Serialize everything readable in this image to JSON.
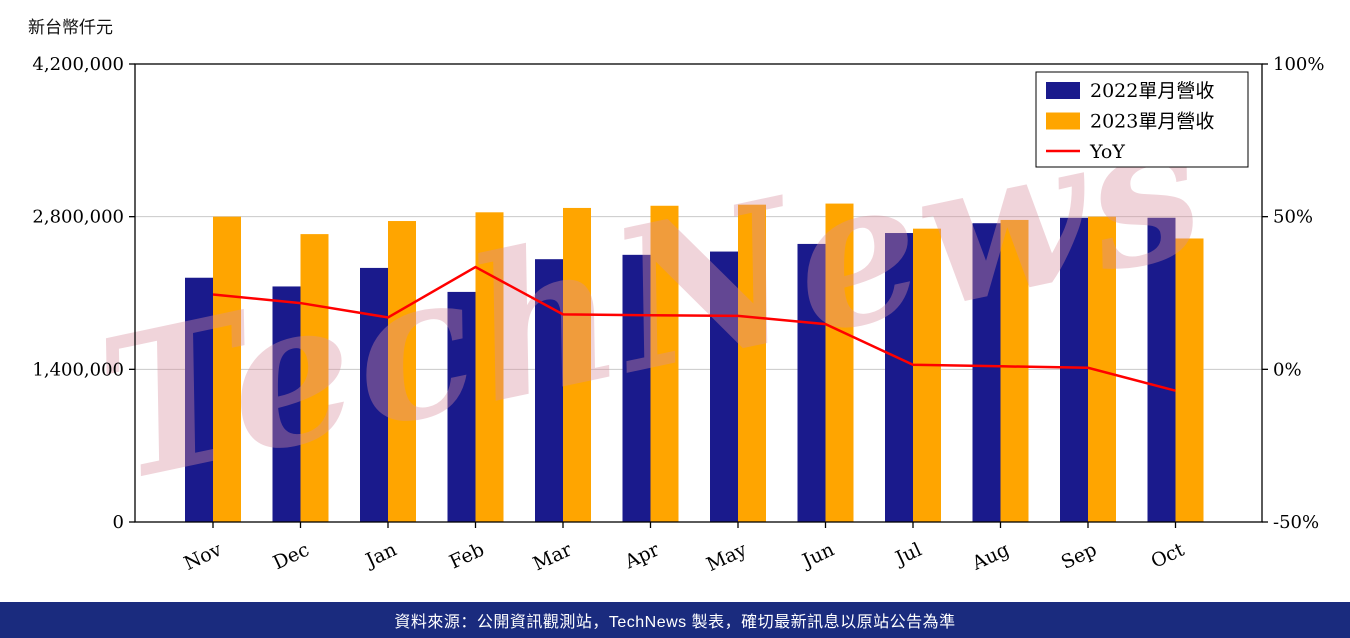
{
  "page": {
    "unit_label": "新台幣仟元",
    "watermark": "TechNews",
    "footer_text": "資料來源：公開資訊觀測站，TechNews 製表，確切最新訊息以原站公告為準"
  },
  "colors": {
    "bar_2022": "#1A1A8C",
    "bar_2023": "#FFA500",
    "yoy_line": "#FF0000",
    "footer_bg": "#1A2B7E",
    "watermark": "#D9909F",
    "grid": "#C9C9C9",
    "axis": "#000000"
  },
  "chart_data": {
    "type": "bar",
    "title": "",
    "xlabel": "",
    "ylabel": "新台幣仟元",
    "categories": [
      "Nov",
      "Dec",
      "Jan",
      "Feb",
      "Mar",
      "Apr",
      "May",
      "Jun",
      "Jul",
      "Aug",
      "Sep",
      "Oct"
    ],
    "series": [
      {
        "name": "2022單月營收",
        "type": "bar",
        "axis": "left",
        "color": "#1A1A8C",
        "values": [
          2240000,
          2160000,
          2330000,
          2110000,
          2410000,
          2450000,
          2480000,
          2550000,
          2650000,
          2740000,
          2790000,
          2790000
        ]
      },
      {
        "name": "2023單月營收",
        "type": "bar",
        "axis": "left",
        "color": "#FFA500",
        "values": [
          2800000,
          2640000,
          2760000,
          2840000,
          2880000,
          2900000,
          2910000,
          2920000,
          2690000,
          2770000,
          2800000,
          2600000
        ]
      },
      {
        "name": "YoY",
        "type": "line",
        "axis": "right",
        "color": "#FF0000",
        "values": [
          24.5,
          21.7,
          17.0,
          33.5,
          18.0,
          17.7,
          17.5,
          14.8,
          1.5,
          1.0,
          0.5,
          -7.0
        ]
      }
    ],
    "left_axis": {
      "min": 0,
      "max": 4200000,
      "tick_values": [
        0,
        1400000,
        2800000,
        4200000
      ],
      "tick_labels": [
        "0",
        "1,400,000",
        "2,800,000",
        "4,200,000"
      ]
    },
    "right_axis": {
      "min": -50,
      "max": 100,
      "tick_values": [
        -50,
        0,
        50,
        100
      ],
      "tick_labels": [
        "-50%",
        "0%",
        "50%",
        "100%"
      ]
    },
    "legend_position": "top-right",
    "grid": true
  }
}
